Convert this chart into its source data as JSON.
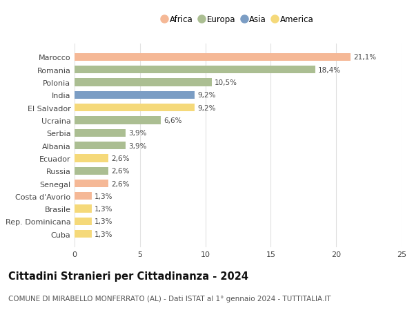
{
  "countries": [
    "Marocco",
    "Romania",
    "Polonia",
    "India",
    "El Salvador",
    "Ucraina",
    "Serbia",
    "Albania",
    "Ecuador",
    "Russia",
    "Senegal",
    "Costa d'Avorio",
    "Brasile",
    "Rep. Dominicana",
    "Cuba"
  ],
  "values": [
    21.1,
    18.4,
    10.5,
    9.2,
    9.2,
    6.6,
    3.9,
    3.9,
    2.6,
    2.6,
    2.6,
    1.3,
    1.3,
    1.3,
    1.3
  ],
  "labels": [
    "21,1%",
    "18,4%",
    "10,5%",
    "9,2%",
    "9,2%",
    "6,6%",
    "3,9%",
    "3,9%",
    "2,6%",
    "2,6%",
    "2,6%",
    "1,3%",
    "1,3%",
    "1,3%",
    "1,3%"
  ],
  "continents": [
    "Africa",
    "Europa",
    "Europa",
    "Asia",
    "America",
    "Europa",
    "Europa",
    "Europa",
    "America",
    "Europa",
    "Africa",
    "Africa",
    "America",
    "America",
    "America"
  ],
  "continent_colors": {
    "Africa": "#F5B896",
    "Europa": "#ABBE92",
    "Asia": "#7B9DC4",
    "America": "#F5D97A"
  },
  "legend_order": [
    "Africa",
    "Europa",
    "Asia",
    "America"
  ],
  "title": "Cittadini Stranieri per Cittadinanza - 2024",
  "subtitle": "COMUNE DI MIRABELLO MONFERRATO (AL) - Dati ISTAT al 1° gennaio 2024 - TUTTITALIA.IT",
  "xlim": [
    0,
    25
  ],
  "xticks": [
    0,
    5,
    10,
    15,
    20,
    25
  ],
  "background_color": "#ffffff",
  "grid_color": "#e0e0e0",
  "bar_height": 0.62,
  "title_fontsize": 10.5,
  "subtitle_fontsize": 7.5,
  "label_fontsize": 7.5,
  "tick_fontsize": 8,
  "legend_fontsize": 8.5
}
